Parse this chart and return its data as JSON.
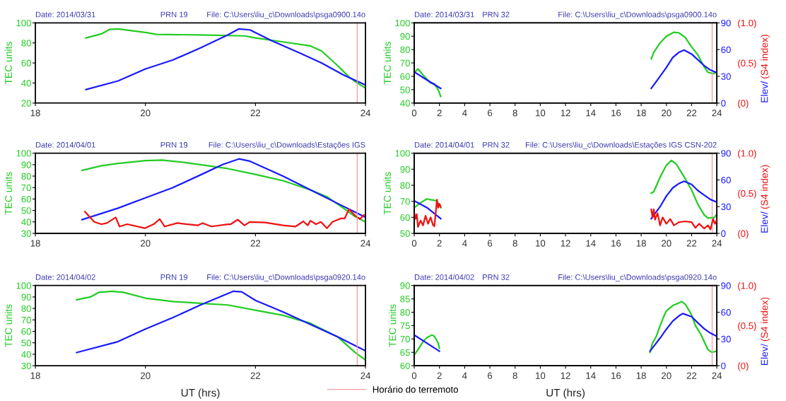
{
  "chart_data": [
    {
      "type": "line",
      "annotations": [
        "Date: 2014/03/31",
        "PRN 19",
        "File: C:\\Users\\liu_c\\Downloads\\psga0900.14o"
      ],
      "ylabel": "TEC units",
      "xlim": [
        18,
        24
      ],
      "xticks": [
        18,
        20,
        22,
        24
      ],
      "ylim": [
        20,
        100
      ],
      "yticks": [
        20,
        40,
        60,
        80,
        100
      ],
      "ref_lines": [
        {
          "axis": "x",
          "value": 23.85,
          "color": "#f4a0a8"
        }
      ],
      "series": [
        {
          "color": "#22cc22",
          "x": [
            18.92,
            19.2,
            19.35,
            19.5,
            20.0,
            20.2,
            21.0,
            21.8,
            22.0,
            22.5,
            23.0,
            23.2,
            23.5,
            23.7,
            23.85,
            24.0
          ],
          "values": [
            85,
            89,
            93.5,
            94,
            90.5,
            88.5,
            88,
            87,
            85,
            81,
            77,
            72,
            57,
            46,
            40,
            35
          ]
        },
        {
          "color": "#1a1aff",
          "x": [
            18.92,
            19.5,
            20.0,
            20.5,
            21.0,
            21.5,
            21.7,
            21.9,
            22.3,
            22.8,
            23.2,
            23.6,
            24.0
          ],
          "values": [
            33.5,
            42,
            54,
            63,
            75,
            88,
            94,
            93,
            82,
            70,
            60,
            48,
            38
          ]
        }
      ]
    },
    {
      "type": "line",
      "annotations": [
        "Date: 2014/03/31",
        "PRN 32",
        "File: C:\\Users\\liu_c\\Downloads\\psga0900.14o"
      ],
      "ylabel": "TEC units",
      "y2label": "Elev/",
      "y3label": "(S4 index)",
      "xlim": [
        0,
        24
      ],
      "xticks": [
        0,
        2,
        4,
        6,
        8,
        10,
        12,
        14,
        16,
        18,
        20,
        22,
        24
      ],
      "ylim": [
        40,
        100
      ],
      "yticks": [
        40,
        50,
        60,
        70,
        80,
        90,
        100
      ],
      "y2lim": [
        0,
        90
      ],
      "y2ticks": [
        0,
        30,
        60,
        90
      ],
      "y3lim": [
        0,
        1
      ],
      "y3ticks": [
        {
          "value": 0,
          "label": "(0)"
        },
        {
          "value": 0.5,
          "label": "(0.5)"
        },
        {
          "value": 1,
          "label": "(1.0)"
        }
      ],
      "ref_lines": [
        {
          "axis": "x",
          "value": 23.63,
          "color": "#f4a0a8"
        }
      ],
      "series": [
        {
          "color": "#22cc22",
          "x": [
            0,
            0.3,
            0.7,
            1.3,
            1.6,
            1.9,
            2.1,
            10,
            18.8,
            19,
            19.5,
            20,
            20.6,
            21,
            21.5,
            22,
            22.5,
            23,
            23.3,
            23.7,
            24
          ],
          "values": [
            63,
            65.5,
            61,
            55,
            54.5,
            50,
            45,
            null,
            73,
            78,
            85,
            90,
            93,
            92.5,
            89,
            82,
            76,
            67,
            63,
            62,
            63
          ]
        },
        {
          "color": "#1a1aff",
          "axis": "y2",
          "x": [
            0,
            1,
            2.1,
            10,
            18.8,
            19.5,
            20,
            20.5,
            21,
            21.4,
            22,
            22.5,
            23,
            23.5,
            24
          ],
          "values": [
            35,
            26,
            16.5,
            null,
            16.5,
            30,
            40,
            51,
            57,
            59.5,
            55,
            48.5,
            42,
            37,
            34
          ]
        }
      ]
    },
    {
      "type": "line",
      "annotations": [
        "Date: 2014/04/01",
        "PRN 19",
        "File: C:\\Users\\liu_c\\Downloads\\Estações IGS"
      ],
      "ylabel": "TEC units",
      "xlim": [
        18,
        24
      ],
      "xticks": [
        18,
        20,
        22,
        24
      ],
      "ylim": [
        30,
        100
      ],
      "yticks": [
        30,
        40,
        50,
        60,
        70,
        80,
        90,
        100
      ],
      "ref_lines": [
        {
          "axis": "x",
          "value": 23.85,
          "color": "#f4a0a8"
        }
      ],
      "series": [
        {
          "color": "#22cc22",
          "x": [
            18.85,
            19.2,
            19.5,
            20,
            20.3,
            20.7,
            21,
            21.5,
            22,
            22.5,
            23,
            23.3,
            23.6,
            23.8,
            24
          ],
          "values": [
            85,
            89,
            91,
            93.5,
            94,
            92,
            90,
            86.5,
            81.5,
            76,
            68,
            62,
            52,
            45,
            40
          ]
        },
        {
          "color": "#1a1aff",
          "x": [
            18.85,
            19.5,
            20,
            20.5,
            21,
            21.4,
            21.7,
            21.9,
            22.5,
            23,
            23.5,
            24
          ],
          "values": [
            42,
            52,
            61,
            70,
            81,
            90,
            95,
            93,
            80,
            68,
            56,
            44
          ]
        },
        {
          "color": "#ee1111",
          "x": [
            18.9,
            19.07,
            19.2,
            19.3,
            19.46,
            19.53,
            19.67,
            19.99,
            20.15,
            20.26,
            20.35,
            20.58,
            20.95,
            21.04,
            21.2,
            21.5,
            21.55,
            21.68,
            21.8,
            21.9,
            22.18,
            22.5,
            22.73,
            22.87,
            22.95,
            23.0,
            23.1,
            23.19,
            23.3,
            23.4,
            23.55,
            23.62,
            23.7,
            23.8,
            23.9,
            23.97
          ],
          "values": [
            49,
            40,
            38,
            39,
            44,
            36,
            38,
            34.5,
            38,
            42.5,
            36,
            39,
            37,
            39,
            36,
            38,
            38,
            42,
            37,
            40,
            39.5,
            37,
            36,
            40.5,
            37,
            41,
            38,
            40,
            34.5,
            40,
            43,
            43,
            51,
            46,
            42.5,
            46
          ]
        }
      ]
    },
    {
      "type": "line",
      "annotations": [
        "Date: 2014/04/01",
        "PRN 32",
        "File: C:\\Users\\liu_c\\Downloads\\Estações IGS CSN-202"
      ],
      "ylabel": "TEC units",
      "y2label": "Elev/",
      "y3label": "(S4 index)",
      "xlim": [
        0,
        24
      ],
      "xticks": [
        0,
        2,
        4,
        6,
        8,
        10,
        12,
        14,
        16,
        18,
        20,
        22,
        24
      ],
      "ylim": [
        50,
        100
      ],
      "yticks": [
        50,
        60,
        70,
        80,
        90,
        100
      ],
      "y2lim": [
        0,
        90
      ],
      "y2ticks": [
        0,
        30,
        60,
        90
      ],
      "y3lim": [
        0,
        1
      ],
      "y3ticks": [
        {
          "value": 0,
          "label": "(0)"
        },
        {
          "value": 0.5,
          "label": "(0.5)"
        },
        {
          "value": 1,
          "label": "(1.0)"
        }
      ],
      "ref_lines": [
        {
          "axis": "x",
          "value": 23.63,
          "color": "#f4a0a8"
        }
      ],
      "series": [
        {
          "color": "#22cc22",
          "x": [
            0,
            0.5,
            1,
            1.3,
            1.7,
            2,
            2.1,
            10,
            18.8,
            19,
            19.5,
            20,
            20.4,
            20.8,
            21.5,
            22,
            22.5,
            23,
            23.3,
            23.8,
            24
          ],
          "values": [
            66,
            69,
            71.5,
            71,
            70.5,
            68,
            66,
            null,
            75,
            76,
            85,
            92.5,
            95.5,
            93,
            84,
            77,
            68,
            61.5,
            59.5,
            60,
            62
          ]
        },
        {
          "color": "#1a1aff",
          "axis": "y2",
          "x": [
            0,
            1,
            2.1,
            10,
            18.8,
            19.5,
            20,
            20.5,
            21,
            21.4,
            22,
            22.5,
            23,
            23.5,
            24
          ],
          "values": [
            36.5,
            29,
            16.5,
            null,
            16.5,
            30,
            42,
            51,
            56,
            58.5,
            55,
            48,
            43,
            38,
            35
          ]
        },
        {
          "color": "#ee1111",
          "axis": "y3",
          "x": [
            0,
            0.1,
            0.2,
            0.3,
            0.5,
            0.7,
            0.9,
            1.1,
            1.3,
            1.5,
            1.6,
            1.75,
            1.8,
            1.9,
            2.0,
            2.1,
            10,
            18.8,
            18.9,
            19.0,
            19.1,
            19.3,
            19.5,
            19.7,
            20,
            20.3,
            20.6,
            21,
            21.5,
            22,
            22.3,
            22.6,
            23,
            23.3,
            23.5,
            23.7,
            23.85,
            24
          ],
          "values": [
            0.26,
            0.18,
            0.24,
            0.08,
            0.16,
            0.1,
            0.22,
            0.12,
            0.2,
            0.1,
            0.09,
            0.33,
            0.42,
            0.32,
            0.37,
            0.33,
            null,
            0.3,
            0.2,
            0.3,
            0.17,
            0.25,
            0.1,
            0.2,
            0.12,
            0.18,
            0.1,
            0.14,
            0.15,
            0.14,
            0.07,
            0.12,
            0.06,
            0.1,
            0.05,
            0.18,
            0.12,
            0.17
          ]
        }
      ]
    },
    {
      "type": "line",
      "annotations": [
        "Date: 2014/04/02",
        "PRN 19",
        "File: C:\\Users\\liu_c\\Downloads\\psga0920.14o"
      ],
      "xlabel": "UT (hrs)",
      "ylabel": "TEC units",
      "xlim": [
        18,
        24
      ],
      "xticks": [
        18,
        20,
        22,
        24
      ],
      "ylim": [
        30,
        100
      ],
      "yticks": [
        30,
        40,
        50,
        60,
        70,
        80,
        90,
        100
      ],
      "legend": "bottom",
      "ref_lines": [
        {
          "axis": "x",
          "value": 23.85,
          "color": "#f4a0a8",
          "label": "Horário do terremoto"
        }
      ],
      "series": [
        {
          "color": "#22cc22",
          "x": [
            18.75,
            19,
            19.15,
            19.4,
            19.6,
            20,
            20.5,
            21,
            21.5,
            22,
            22.5,
            23,
            23.5,
            23.8,
            24
          ],
          "values": [
            87.5,
            90,
            94,
            95,
            94,
            89,
            86,
            84.5,
            83,
            78.5,
            74,
            67,
            55,
            42,
            35
          ]
        },
        {
          "color": "#1a1aff",
          "x": [
            18.75,
            19.5,
            20,
            20.5,
            21,
            21.4,
            21.6,
            21.75,
            22,
            22.5,
            23,
            23.5,
            24
          ],
          "values": [
            41.5,
            51,
            62,
            72,
            83,
            91,
            95,
            94.5,
            87,
            77,
            66,
            55,
            43
          ]
        }
      ]
    },
    {
      "type": "line",
      "annotations": [
        "Date: 2014/04/02",
        "PRN 32",
        "File: C:\\Users\\liu_c\\Downloads\\psga0920.14o"
      ],
      "xlabel": "UT (hrs)",
      "ylabel": "TEC units",
      "y2label": "Elev/",
      "y3label": "(S4 index)",
      "xlim": [
        0,
        24
      ],
      "xticks": [
        0,
        2,
        4,
        6,
        8,
        10,
        12,
        14,
        16,
        18,
        20,
        22,
        24
      ],
      "ylim": [
        60,
        90
      ],
      "yticks": [
        60,
        65,
        70,
        75,
        80,
        85,
        90
      ],
      "y2lim": [
        0,
        90
      ],
      "y2ticks": [
        0,
        30,
        60,
        90
      ],
      "y3lim": [
        0,
        1
      ],
      "y3ticks": [
        {
          "value": 0,
          "label": "(0)"
        },
        {
          "value": 0.5,
          "label": "(0.5)"
        },
        {
          "value": 1,
          "label": "(1.0)"
        }
      ],
      "ref_lines": [
        {
          "axis": "x",
          "value": 23.63,
          "color": "#f4a0a8"
        }
      ],
      "series": [
        {
          "color": "#22cc22",
          "x": [
            0,
            0.3,
            0.7,
            1,
            1.4,
            1.6,
            1.9,
            2.0,
            10,
            18.7,
            18.9,
            19.2,
            19.5,
            19.8,
            20,
            20.5,
            21,
            21.2,
            21.5,
            22,
            22.3,
            22.7,
            23,
            23.3,
            23.6,
            24
          ],
          "values": [
            64,
            66,
            69,
            70.5,
            71.5,
            71,
            68.5,
            66.5,
            null,
            65,
            68.5,
            71,
            75,
            78.5,
            80.5,
            82.5,
            83.5,
            84,
            83,
            79,
            75,
            72,
            69,
            66,
            65,
            65.5
          ]
        },
        {
          "color": "#1a1aff",
          "axis": "y2",
          "x": [
            0,
            2,
            10,
            18.7,
            19.5,
            20,
            20.5,
            21,
            21.3,
            22,
            22.5,
            23,
            23.5,
            24
          ],
          "values": [
            34.5,
            16.3,
            null,
            16.3,
            31,
            41,
            50,
            56,
            58.5,
            55,
            48,
            41.5,
            36.5,
            33
          ]
        }
      ]
    }
  ]
}
